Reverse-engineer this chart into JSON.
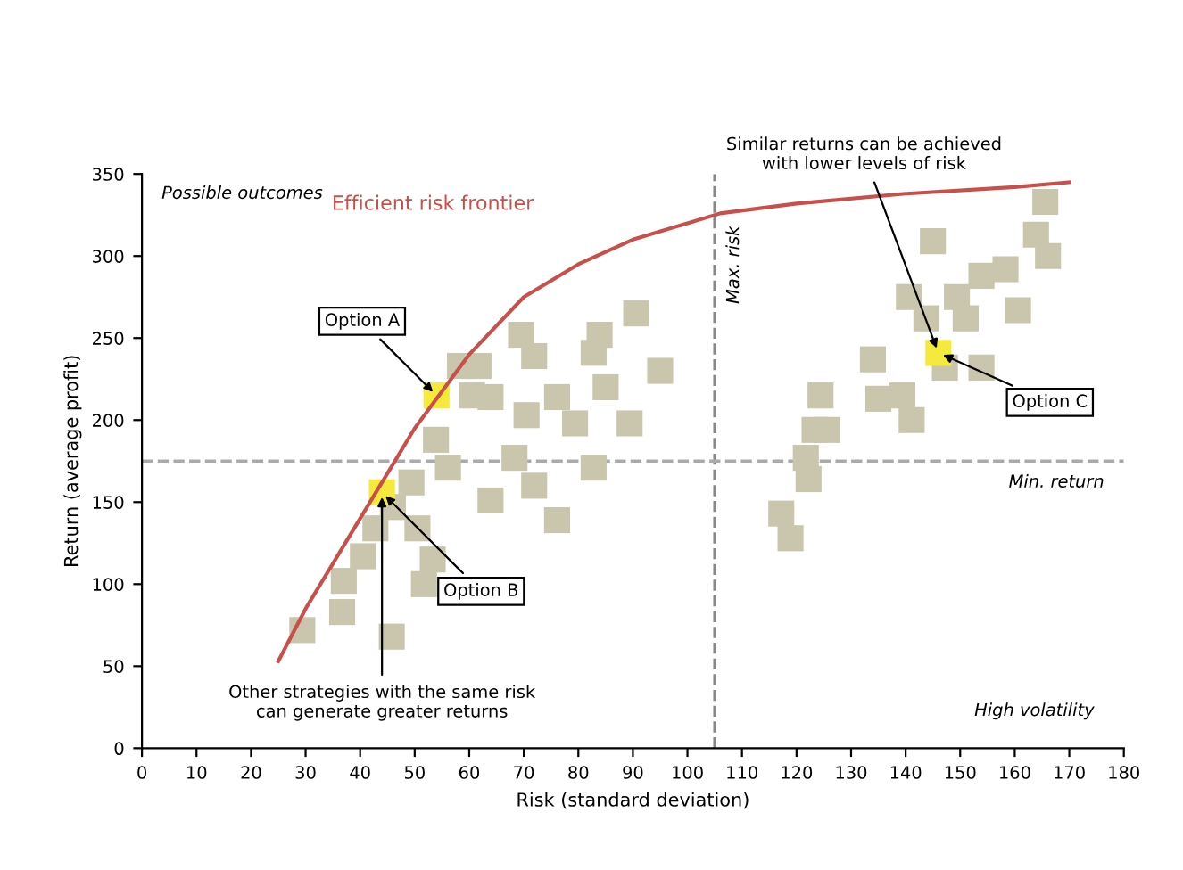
{
  "chart_data": {
    "type": "scatter",
    "xlabel": "Risk (standard deviation)",
    "ylabel": "Return (average profit)",
    "xlim": [
      0,
      180
    ],
    "xticks": [
      0,
      10,
      20,
      30,
      40,
      50,
      60,
      70,
      80,
      90,
      100,
      110,
      120,
      130,
      140,
      150,
      160,
      170,
      180
    ],
    "ylim": [
      0,
      350
    ],
    "yticks": [
      0,
      50,
      100,
      150,
      200,
      250,
      300,
      350
    ],
    "grid": false,
    "legend": false,
    "marker": "square",
    "series": [
      {
        "color": "#c9c6ad",
        "x": [
          29.4,
          37,
          36.7,
          45.8,
          42.8,
          40.5,
          50.5,
          53.3,
          51.7,
          46,
          60.5,
          61.7,
          63.9,
          69.5,
          71.9,
          70.5,
          68.3,
          63.9,
          71.9,
          76.1,
          79.4,
          76.1,
          82.8,
          83.9,
          82.8,
          85,
          89.4,
          90.6,
          95,
          53.9,
          56.1,
          49.4,
          58.3,
          117.2,
          118.9,
          121.7,
          124.4,
          123.3,
          125.6,
          122.2,
          134,
          135,
          140.6,
          139.4,
          141.1,
          145,
          147.2,
          151,
          153.9,
          158.3,
          160.6,
          153.9,
          163.9,
          165.6,
          166.1,
          143.8,
          149.4
        ],
        "values": [
          72,
          102,
          83,
          68,
          134,
          117,
          134,
          115,
          100,
          147,
          215,
          233,
          214,
          252,
          239,
          203,
          177,
          151,
          160,
          214,
          198,
          139,
          241,
          252,
          171,
          220,
          198,
          265,
          230,
          188,
          171,
          162,
          233,
          143,
          128,
          177,
          215,
          194,
          194,
          164,
          237,
          213,
          275,
          215,
          200,
          309,
          232,
          262,
          288,
          292,
          267,
          232,
          313,
          333,
          300,
          262,
          275
        ]
      },
      {
        "color": "#f5ea3c",
        "x": [
          54,
          44,
          146
        ],
        "values": [
          215,
          156,
          241
        ]
      },
      {
        "type": "line",
        "name": "Efficient risk frontier",
        "color": "#c8504a",
        "marker": "none",
        "x": [
          25,
          30,
          40,
          50,
          60,
          70,
          80,
          90,
          100,
          106,
          120,
          140,
          160,
          170
        ],
        "values": [
          53,
          85,
          140,
          195,
          240,
          275,
          295,
          310,
          320,
          326,
          332,
          338,
          342,
          345
        ]
      }
    ],
    "ref_lines": [
      {
        "axis": "x",
        "value": 105,
        "label": "Max. risk",
        "color": "#888888",
        "line_style": "dashed"
      },
      {
        "axis": "y",
        "value": 175,
        "label": "Min. return",
        "color": "#aaaaaa",
        "line_style": "dashed"
      }
    ],
    "annotations": [
      "Possible outcomes",
      "High volatility",
      {
        "text": "Option A",
        "x": 54,
        "y": 215
      },
      {
        "text": "Option B",
        "x": 44,
        "y": 156
      },
      {
        "text": "Option C",
        "x": 146,
        "y": 241
      },
      {
        "text": "Other strategies with the same risk\ncan generate greater returns",
        "x": 44,
        "y": 156
      },
      {
        "text": "Similar returns can be achieved\nwith lower levels of risk",
        "x": 146,
        "y": 241
      }
    ]
  }
}
